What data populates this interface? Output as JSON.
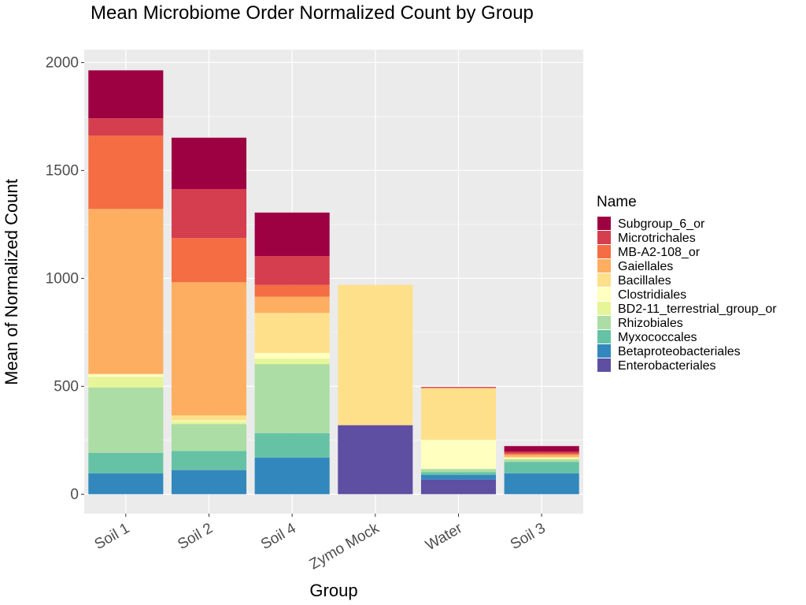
{
  "chart_data": {
    "type": "bar",
    "stacked": true,
    "title": "Mean Microbiome Order Normalized Count by Group",
    "xlabel": "Group",
    "ylabel": "Mean of Normalized Count",
    "ylim": [
      -90,
      2060
    ],
    "yticks": [
      0,
      500,
      1000,
      1500,
      2000
    ],
    "grid": true,
    "legend": {
      "title": "Name",
      "position": "right"
    },
    "categories": [
      "Soil 1",
      "Soil 2",
      "Soil 4",
      "Zymo Mock",
      "Water",
      "Soil 3"
    ],
    "series": [
      {
        "name": "Enterobacteriales",
        "color": "#5e4fa2",
        "values": [
          0,
          0,
          0,
          320,
          68,
          0
        ]
      },
      {
        "name": "Betaproteobacteriales",
        "color": "#3288bd",
        "values": [
          97,
          112,
          170,
          0,
          22,
          97
        ]
      },
      {
        "name": "Myxococcales",
        "color": "#66c2a5",
        "values": [
          95,
          88,
          113,
          0,
          12,
          52
        ]
      },
      {
        "name": "Rhizobiales",
        "color": "#abdda4",
        "values": [
          302,
          125,
          320,
          0,
          15,
          12
        ]
      },
      {
        "name": "BD2-11_terrestrial_group_or",
        "color": "#e6f598",
        "values": [
          50,
          12,
          25,
          0,
          0,
          5
        ]
      },
      {
        "name": "Clostridiales",
        "color": "#ffffbf",
        "values": [
          13,
          5,
          27,
          0,
          135,
          3
        ]
      },
      {
        "name": "Bacillales",
        "color": "#fee08b",
        "values": [
          0,
          23,
          185,
          650,
          240,
          4
        ]
      },
      {
        "name": "Gaiellales",
        "color": "#fdae61",
        "values": [
          765,
          617,
          75,
          0,
          0,
          10
        ]
      },
      {
        "name": "MB-A2-108_or",
        "color": "#f46d43",
        "values": [
          340,
          205,
          55,
          0,
          0,
          6
        ]
      },
      {
        "name": "Microtrichales",
        "color": "#d53e4f",
        "values": [
          80,
          227,
          133,
          0,
          5,
          8
        ]
      },
      {
        "name": "Subgroup_6_or",
        "color": "#9e0142",
        "values": [
          222,
          238,
          202,
          0,
          0,
          26
        ]
      }
    ],
    "legend_order": [
      "Subgroup_6_or",
      "Microtrichales",
      "MB-A2-108_or",
      "Gaiellales",
      "Bacillales",
      "Clostridiales",
      "BD2-11_terrestrial_group_or",
      "Rhizobiales",
      "Myxococcales",
      "Betaproteobacteriales",
      "Enterobacteriales"
    ],
    "colors": {
      "panel": "#ebebeb",
      "grid": "#ffffff",
      "axis_text": "#4d4d4d"
    }
  }
}
